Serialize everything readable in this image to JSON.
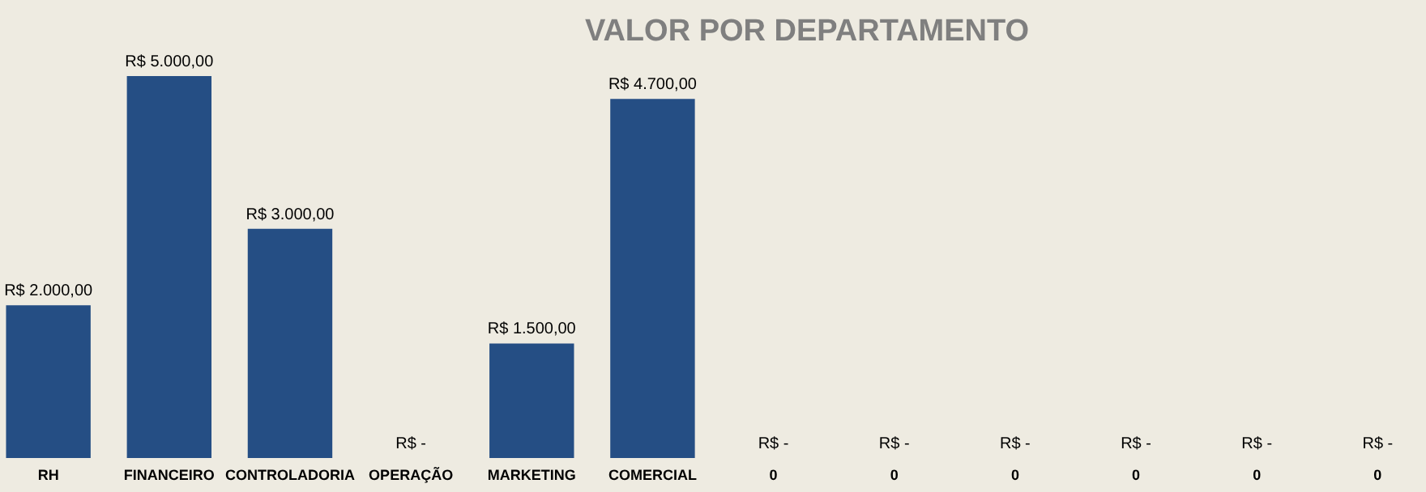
{
  "chart_data": {
    "type": "bar",
    "title": "VALOR POR DEPARTAMENTO",
    "categories": [
      "RH",
      "FINANCEIRO",
      "CONTROLADORIA",
      "OPERAÇÃO",
      "MARKETING",
      "COMERCIAL",
      "0",
      "0",
      "0",
      "0",
      "0",
      "0"
    ],
    "values": [
      2000,
      5000,
      3000,
      0,
      1500,
      4700,
      0,
      0,
      0,
      0,
      0,
      0
    ],
    "color": "#254e84",
    "value_labels": [
      "R$ 2.000,00",
      "R$ 5.000,00",
      "R$ 3.000,00",
      "R$ -",
      "R$ 1.500,00",
      "R$ 4.700,00",
      "R$ -",
      "R$ -",
      "R$ -",
      "R$ -",
      "R$ -",
      "R$ -"
    ]
  }
}
